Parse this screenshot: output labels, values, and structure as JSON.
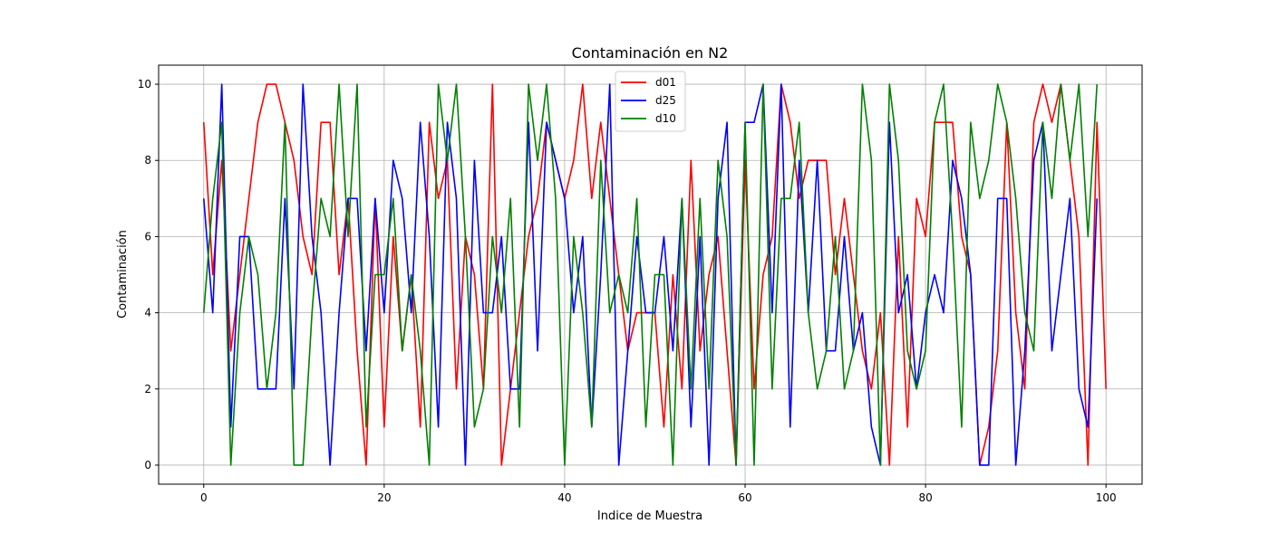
{
  "chart_data": {
    "type": "line",
    "title": "Contaminación en N2",
    "xlabel": "Indice de Muestra",
    "ylabel": "Contaminación",
    "xlim": [
      -5,
      104
    ],
    "ylim": [
      -0.5,
      10.5
    ],
    "xticks": [
      0,
      20,
      40,
      60,
      80,
      100
    ],
    "yticks": [
      0,
      2,
      4,
      6,
      8,
      10
    ],
    "grid": true,
    "legend": "top-center",
    "x_start": 0,
    "series": [
      {
        "name": "d01",
        "color": "#ff0000",
        "values": [
          9,
          5,
          8,
          3,
          5,
          7,
          9,
          10,
          10,
          9,
          8,
          6,
          5,
          9,
          9,
          5,
          7,
          3,
          0,
          7,
          1,
          6,
          3,
          5,
          1,
          9,
          7,
          8,
          2,
          6,
          5,
          2,
          10,
          0,
          2,
          4,
          6,
          7,
          9,
          8,
          7,
          8,
          10,
          7,
          9,
          7,
          5,
          3,
          4,
          4,
          4,
          1,
          5,
          2,
          8,
          3,
          5,
          6,
          3,
          0,
          8,
          2,
          5,
          6,
          10,
          9,
          7,
          8,
          8,
          8,
          5,
          7,
          5,
          3,
          2,
          4,
          0,
          6,
          1,
          7,
          6,
          9,
          9,
          9,
          6,
          5,
          0,
          1,
          3,
          9,
          4,
          2,
          9,
          10,
          9,
          10,
          8,
          6,
          0,
          9,
          2
        ]
      },
      {
        "name": "d25",
        "color": "#0000ff",
        "values": [
          7,
          4,
          10,
          1,
          6,
          6,
          2,
          2,
          2,
          7,
          2,
          10,
          6,
          4,
          0,
          4,
          7,
          7,
          3,
          7,
          4,
          8,
          7,
          4,
          9,
          6,
          1,
          9,
          7,
          0,
          8,
          4,
          4,
          6,
          2,
          2,
          9,
          3,
          9,
          8,
          7,
          4,
          6,
          1,
          5,
          10,
          0,
          3,
          6,
          4,
          4,
          6,
          3,
          7,
          1,
          6,
          0,
          7,
          9,
          0,
          9,
          9,
          10,
          4,
          10,
          1,
          8,
          4,
          8,
          3,
          3,
          6,
          3,
          4,
          1,
          0,
          9,
          4,
          5,
          2,
          4,
          5,
          4,
          8,
          7,
          5,
          0,
          0,
          7,
          7,
          0,
          3,
          8,
          9,
          3,
          5,
          7,
          2,
          1,
          7
        ]
      },
      {
        "name": "d10",
        "color": "#008000",
        "values": [
          4,
          7,
          9,
          0,
          4,
          6,
          5,
          2,
          4,
          9,
          0,
          0,
          4,
          7,
          6,
          10,
          6,
          10,
          1,
          5,
          5,
          7,
          3,
          5,
          3,
          0,
          10,
          8,
          10,
          6,
          1,
          2,
          6,
          4,
          7,
          1,
          10,
          8,
          10,
          7,
          0,
          6,
          4,
          1,
          8,
          4,
          5,
          4,
          7,
          1,
          5,
          5,
          0,
          7,
          2,
          7,
          2,
          8,
          6,
          0,
          9,
          0,
          10,
          2,
          7,
          7,
          9,
          4,
          2,
          3,
          6,
          2,
          3,
          10,
          8,
          0,
          10,
          8,
          3,
          2,
          3,
          9,
          10,
          6,
          1,
          9,
          7,
          8,
          10,
          9,
          7,
          4,
          3,
          9,
          7,
          10,
          8,
          10,
          6,
          10
        ]
      }
    ]
  }
}
